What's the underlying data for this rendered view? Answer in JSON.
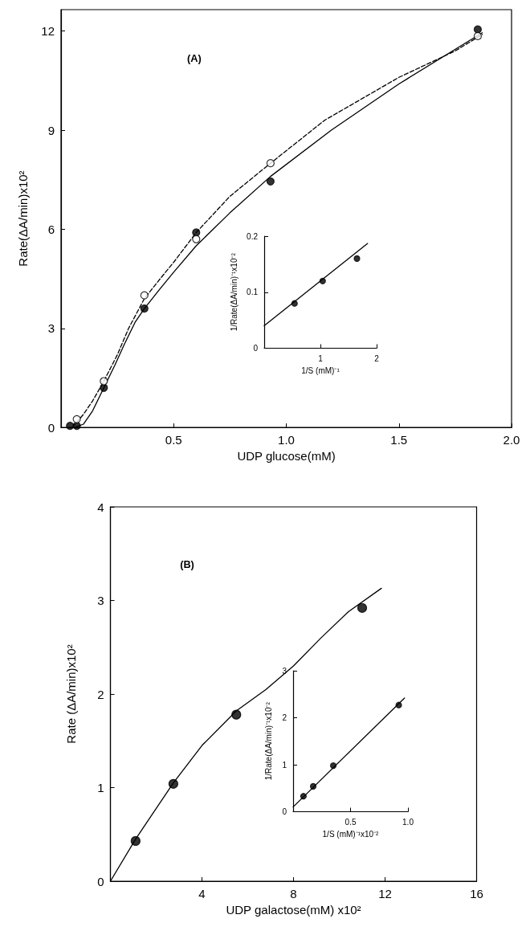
{
  "chart_data": [
    {
      "type": "scatter",
      "xlabel": "UDP glucose(mM)",
      "ylabel": "Rate(ΔA/min)x10²",
      "annotations": [
        "(A)"
      ],
      "xlim": [
        0,
        2
      ],
      "ylim": [
        0,
        12.65
      ],
      "xticks": [
        {
          "value": 0,
          "label": null
        },
        0.5,
        {
          "value": 1,
          "label": "1.0"
        },
        1.5,
        {
          "value": 2,
          "label": "2.0"
        }
      ],
      "yticks": [
        0,
        3,
        6,
        9,
        12
      ],
      "grid": false,
      "series": [
        {
          "type": "scatter",
          "color": "#000000",
          "marker": "circle",
          "x": [
            0.04,
            0.07,
            0.19,
            0.37,
            0.6,
            0.93,
            1.85
          ],
          "values": [
            0.05,
            0.05,
            1.2,
            3.6,
            5.9,
            7.45,
            12.05
          ]
        },
        {
          "type": "scatter",
          "color": "#ffffff",
          "marker": "circle",
          "x": [
            0.07,
            0.19,
            0.37,
            0.6,
            0.93,
            1.85
          ],
          "values": [
            0.25,
            1.4,
            4.0,
            5.7,
            8.0,
            11.85
          ]
        },
        {
          "type": "line",
          "color": "#000000",
          "marker": "none",
          "line_style": "solid",
          "x": [
            0.06,
            0.1,
            0.14,
            0.19,
            0.24,
            0.28,
            0.33,
            0.37,
            0.44,
            0.5,
            0.6,
            0.75,
            0.93,
            1.2,
            1.5,
            1.87
          ],
          "values": [
            0,
            0.1,
            0.5,
            1.2,
            1.9,
            2.5,
            3.2,
            3.6,
            4.2,
            4.7,
            5.5,
            6.5,
            7.6,
            9.0,
            10.4,
            11.95
          ]
        },
        {
          "type": "line",
          "color": "#000000",
          "marker": "none",
          "line_style": "dashed",
          "x": [
            0.05,
            0.1,
            0.14,
            0.19,
            0.25,
            0.3,
            0.37,
            0.44,
            0.5,
            0.6,
            0.75,
            0.93,
            1.17,
            1.5,
            1.75,
            1.87
          ],
          "values": [
            0,
            0.4,
            0.8,
            1.4,
            2.2,
            3.0,
            3.9,
            4.5,
            5.0,
            5.9,
            7.0,
            8.0,
            9.3,
            10.6,
            11.4,
            11.9
          ]
        }
      ]
    },
    {
      "type": "scatter",
      "xlabel": "1/S (mM)⁻¹",
      "ylabel": "1/Rate(ΔA/min)⁻¹x10⁻²",
      "xlim": [
        0,
        2
      ],
      "ylim": [
        0,
        0.2
      ],
      "xticks": [
        {
          "value": 0,
          "label": null
        },
        1,
        2
      ],
      "yticks": [
        0,
        0.1,
        0.2
      ],
      "grid": false,
      "series": [
        {
          "type": "scatter",
          "color": "#000000",
          "marker": "circle",
          "x": [
            0.54,
            1.04,
            1.65
          ],
          "values": [
            0.08,
            0.12,
            0.16
          ]
        },
        {
          "type": "line",
          "color": "#000000",
          "marker": "none",
          "line_style": "solid",
          "x": [
            0,
            1.84
          ],
          "values": [
            0.04,
            0.187
          ]
        }
      ]
    },
    {
      "type": "scatter",
      "xlabel": "UDP galactose(mM) x10²",
      "ylabel": "Rate (ΔA/min)x10²",
      "annotations": [
        "(B)"
      ],
      "xlim": [
        0,
        16
      ],
      "ylim": [
        0,
        4
      ],
      "xticks": [
        {
          "value": 0,
          "label": null
        },
        4,
        8,
        12,
        16
      ],
      "yticks": [
        0,
        1,
        2,
        3,
        4
      ],
      "grid": false,
      "series": [
        {
          "type": "scatter",
          "color": "#000000",
          "marker": "circle",
          "x": [
            1.1,
            2.75,
            5.5,
            11.0
          ],
          "values": [
            0.43,
            1.04,
            1.78,
            2.92
          ]
        },
        {
          "type": "line",
          "color": "#000000",
          "marker": "none",
          "line_style": "solid",
          "x": [
            0,
            1.1,
            2.75,
            4,
            5.5,
            6.8,
            8,
            9.2,
            10.4,
            11.84
          ],
          "values": [
            0,
            0.45,
            1.05,
            1.45,
            1.82,
            2.05,
            2.3,
            2.6,
            2.88,
            3.13
          ]
        }
      ]
    },
    {
      "type": "scatter",
      "xlabel": "1/S (mM)⁻¹x10⁻²",
      "ylabel": "1/Rate(ΔA/min)⁻¹x10⁻²",
      "xlim": [
        0,
        1
      ],
      "ylim": [
        0,
        3
      ],
      "xticks": [
        {
          "value": 0,
          "label": null
        },
        0.5,
        {
          "value": 1,
          "label": "1.0"
        }
      ],
      "yticks": [
        0,
        1,
        2,
        3
      ],
      "grid": false,
      "series": [
        {
          "type": "scatter",
          "color": "#000000",
          "marker": "circle",
          "x": [
            0.09,
            0.175,
            0.35,
            0.92
          ],
          "values": [
            0.33,
            0.54,
            0.98,
            2.27
          ]
        },
        {
          "type": "line",
          "color": "#000000",
          "marker": "none",
          "line_style": "solid",
          "x": [
            0,
            0.97
          ],
          "values": [
            0.1,
            2.42
          ]
        }
      ]
    }
  ]
}
